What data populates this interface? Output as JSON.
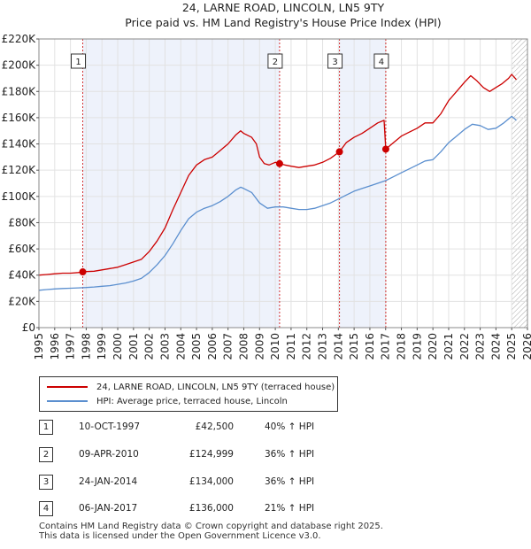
{
  "title_line1": "24, LARNE ROAD, LINCOLN, LN5 9TY",
  "title_line2": "Price paid vs. HM Land Registry's House Price Index (HPI)",
  "chart_data": {
    "type": "line",
    "title": "24, LARNE ROAD, LINCOLN, LN5 9TY - Price paid vs. HM Land Registry's House Price Index (HPI)",
    "xlim": [
      1995,
      2026
    ],
    "ylim": [
      0,
      220000
    ],
    "x_ticks": [
      "1995",
      "1996",
      "1997",
      "1998",
      "1999",
      "2000",
      "2001",
      "2002",
      "2003",
      "2004",
      "2005",
      "2006",
      "2007",
      "2008",
      "2009",
      "2010",
      "2011",
      "2012",
      "2013",
      "2014",
      "2015",
      "2016",
      "2017",
      "2018",
      "2019",
      "2020",
      "2021",
      "2022",
      "2023",
      "2024",
      "2025",
      "2026"
    ],
    "y_ticks": [
      {
        "value": 0,
        "label": "£0"
      },
      {
        "value": 20000,
        "label": "£20K"
      },
      {
        "value": 40000,
        "label": "£40K"
      },
      {
        "value": 60000,
        "label": "£60K"
      },
      {
        "value": 80000,
        "label": "£80K"
      },
      {
        "value": 100000,
        "label": "£100K"
      },
      {
        "value": 120000,
        "label": "£120K"
      },
      {
        "value": 140000,
        "label": "£140K"
      },
      {
        "value": 160000,
        "label": "£160K"
      },
      {
        "value": 180000,
        "label": "£180K"
      },
      {
        "value": 200000,
        "label": "£200K"
      },
      {
        "value": 220000,
        "label": "£220K"
      }
    ],
    "series": [
      {
        "name": "24, LARNE ROAD, LINCOLN, LN5 9TY (terraced house)",
        "color": "#cc0000",
        "points": [
          [
            1995.0,
            40000
          ],
          [
            1995.5,
            40500
          ],
          [
            1996.0,
            41000
          ],
          [
            1996.5,
            41500
          ],
          [
            1997.0,
            41500
          ],
          [
            1997.5,
            42000
          ],
          [
            1997.78,
            42500
          ],
          [
            1998.0,
            42700
          ],
          [
            1998.5,
            43000
          ],
          [
            1999.0,
            44000
          ],
          [
            1999.5,
            45000
          ],
          [
            2000.0,
            46000
          ],
          [
            2000.5,
            48000
          ],
          [
            2001.0,
            50000
          ],
          [
            2001.5,
            52000
          ],
          [
            2002.0,
            58000
          ],
          [
            2002.5,
            66000
          ],
          [
            2003.0,
            76000
          ],
          [
            2003.5,
            90000
          ],
          [
            2004.0,
            103000
          ],
          [
            2004.5,
            116000
          ],
          [
            2005.0,
            124000
          ],
          [
            2005.5,
            128000
          ],
          [
            2006.0,
            130000
          ],
          [
            2006.5,
            135000
          ],
          [
            2007.0,
            140000
          ],
          [
            2007.5,
            147000
          ],
          [
            2007.8,
            150000
          ],
          [
            2008.0,
            148000
          ],
          [
            2008.5,
            145000
          ],
          [
            2008.8,
            140000
          ],
          [
            2009.0,
            130000
          ],
          [
            2009.3,
            125000
          ],
          [
            2009.6,
            124000
          ],
          [
            2010.0,
            126000
          ],
          [
            2010.27,
            124999
          ],
          [
            2010.6,
            124000
          ],
          [
            2011.0,
            123000
          ],
          [
            2011.5,
            122000
          ],
          [
            2012.0,
            123000
          ],
          [
            2012.5,
            124000
          ],
          [
            2013.0,
            126000
          ],
          [
            2013.5,
            129000
          ],
          [
            2014.07,
            134000
          ],
          [
            2014.5,
            141000
          ],
          [
            2015.0,
            145000
          ],
          [
            2015.5,
            148000
          ],
          [
            2016.0,
            152000
          ],
          [
            2016.5,
            156000
          ],
          [
            2016.9,
            158000
          ],
          [
            2017.01,
            136000
          ],
          [
            2017.3,
            139000
          ],
          [
            2017.7,
            143000
          ],
          [
            2018.0,
            146000
          ],
          [
            2018.5,
            149000
          ],
          [
            2019.0,
            152000
          ],
          [
            2019.5,
            156000
          ],
          [
            2020.0,
            156000
          ],
          [
            2020.5,
            163000
          ],
          [
            2021.0,
            173000
          ],
          [
            2021.5,
            180000
          ],
          [
            2022.0,
            187000
          ],
          [
            2022.4,
            192000
          ],
          [
            2022.8,
            188000
          ],
          [
            2023.2,
            183000
          ],
          [
            2023.6,
            180000
          ],
          [
            2024.0,
            183000
          ],
          [
            2024.4,
            186000
          ],
          [
            2024.8,
            190000
          ],
          [
            2025.0,
            193000
          ],
          [
            2025.3,
            189000
          ]
        ]
      },
      {
        "name": "HPI: Average price, terraced house, Lincoln",
        "color": "#5b8fcf",
        "points": [
          [
            1995.0,
            28500
          ],
          [
            1995.5,
            29000
          ],
          [
            1996.0,
            29500
          ],
          [
            1996.5,
            29800
          ],
          [
            1997.0,
            30000
          ],
          [
            1997.5,
            30300
          ],
          [
            1998.0,
            30600
          ],
          [
            1998.5,
            31000
          ],
          [
            1999.0,
            31500
          ],
          [
            1999.5,
            32000
          ],
          [
            2000.0,
            33000
          ],
          [
            2000.5,
            34000
          ],
          [
            2001.0,
            35500
          ],
          [
            2001.5,
            37500
          ],
          [
            2002.0,
            42000
          ],
          [
            2002.5,
            48000
          ],
          [
            2003.0,
            55000
          ],
          [
            2003.5,
            64000
          ],
          [
            2004.0,
            74000
          ],
          [
            2004.5,
            83000
          ],
          [
            2005.0,
            88000
          ],
          [
            2005.5,
            91000
          ],
          [
            2006.0,
            93000
          ],
          [
            2006.5,
            96000
          ],
          [
            2007.0,
            100000
          ],
          [
            2007.5,
            105000
          ],
          [
            2007.8,
            107000
          ],
          [
            2008.0,
            106000
          ],
          [
            2008.5,
            103000
          ],
          [
            2009.0,
            95000
          ],
          [
            2009.5,
            91000
          ],
          [
            2010.0,
            92000
          ],
          [
            2010.5,
            92000
          ],
          [
            2011.0,
            91000
          ],
          [
            2011.5,
            90000
          ],
          [
            2012.0,
            90000
          ],
          [
            2012.5,
            91000
          ],
          [
            2013.0,
            93000
          ],
          [
            2013.5,
            95000
          ],
          [
            2014.0,
            98000
          ],
          [
            2014.5,
            101000
          ],
          [
            2015.0,
            104000
          ],
          [
            2015.5,
            106000
          ],
          [
            2016.0,
            108000
          ],
          [
            2016.5,
            110000
          ],
          [
            2017.0,
            112000
          ],
          [
            2017.5,
            115000
          ],
          [
            2018.0,
            118000
          ],
          [
            2018.5,
            121000
          ],
          [
            2019.0,
            124000
          ],
          [
            2019.5,
            127000
          ],
          [
            2020.0,
            128000
          ],
          [
            2020.5,
            134000
          ],
          [
            2021.0,
            141000
          ],
          [
            2021.5,
            146000
          ],
          [
            2022.0,
            151000
          ],
          [
            2022.5,
            155000
          ],
          [
            2023.0,
            154000
          ],
          [
            2023.5,
            151000
          ],
          [
            2024.0,
            152000
          ],
          [
            2024.5,
            156000
          ],
          [
            2025.0,
            161000
          ],
          [
            2025.3,
            158000
          ]
        ]
      }
    ],
    "annotations": [
      {
        "label": "1",
        "x": 1997.78,
        "y": 42500
      },
      {
        "label": "2",
        "x": 2010.27,
        "y": 124999
      },
      {
        "label": "3",
        "x": 2014.07,
        "y": 134000
      },
      {
        "label": "4",
        "x": 2017.01,
        "y": 136000
      }
    ],
    "shaded_ranges": [
      [
        1997.78,
        2010.27
      ],
      [
        2014.07,
        2017.01
      ]
    ],
    "hatched_from": 2025.0
  },
  "legend": {
    "property_label": "24, LARNE ROAD, LINCOLN, LN5 9TY (terraced house)",
    "hpi_label": "HPI: Average price, terraced house, Lincoln",
    "property_color": "#cc0000",
    "hpi_color": "#5b8fcf"
  },
  "transactions": [
    {
      "num": "1",
      "date": "10-OCT-1997",
      "price": "£42,500",
      "hpi": "40% ↑ HPI"
    },
    {
      "num": "2",
      "date": "09-APR-2010",
      "price": "£124,999",
      "hpi": "36% ↑ HPI"
    },
    {
      "num": "3",
      "date": "24-JAN-2014",
      "price": "£134,000",
      "hpi": "36% ↑ HPI"
    },
    {
      "num": "4",
      "date": "06-JAN-2017",
      "price": "£136,000",
      "hpi": "21% ↑ HPI"
    }
  ],
  "footer": {
    "line1": "Contains HM Land Registry data © Crown copyright and database right 2025.",
    "line2": "This data is licensed under the Open Government Licence v3.0."
  }
}
